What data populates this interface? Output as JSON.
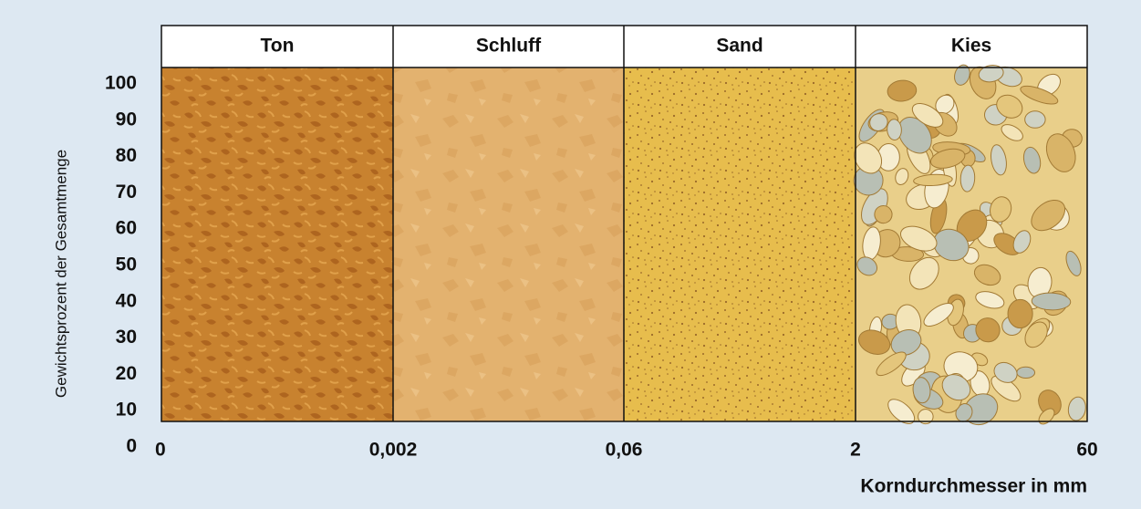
{
  "columns": [
    {
      "label": "Ton"
    },
    {
      "label": "Schluff"
    },
    {
      "label": "Sand"
    },
    {
      "label": "Kies"
    }
  ],
  "y_axis": {
    "label": "Gewichtsprozent der Gesamtmenge",
    "ticks": [
      100,
      90,
      80,
      70,
      60,
      50,
      40,
      30,
      20,
      10,
      0
    ]
  },
  "x_axis": {
    "label": "Korndurchmesser in mm",
    "ticks": [
      "0",
      "0,002",
      "0,06",
      "2",
      "60"
    ]
  }
}
